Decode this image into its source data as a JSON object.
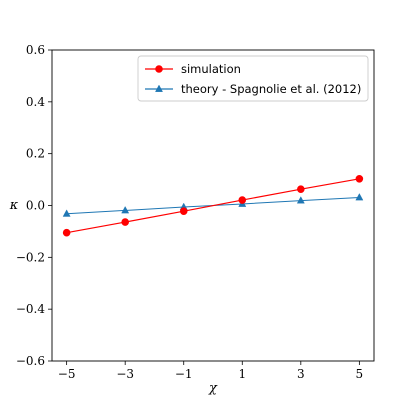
{
  "chart_data": {
    "type": "line",
    "xlabel": "χ",
    "ylabel": "κ",
    "xlim": [
      -5.5,
      5.5
    ],
    "ylim": [
      -0.6,
      0.6
    ],
    "xticks": [
      -5,
      -3,
      -1,
      1,
      3,
      5
    ],
    "xtick_labels": [
      "−5",
      "−3",
      "−1",
      "1",
      "3",
      "5"
    ],
    "yticks": [
      -0.6,
      -0.4,
      -0.2,
      0.0,
      0.2,
      0.4,
      0.6
    ],
    "ytick_labels": [
      "−0.6",
      "−0.4",
      "−0.2",
      "0.0",
      "0.2",
      "0.4",
      "0.6"
    ],
    "grid": false,
    "legend_position": "top-right",
    "series": [
      {
        "name": "simulation",
        "color": "#ff0000",
        "marker": "circle",
        "x": [
          -5,
          -3,
          -1,
          1,
          3,
          5
        ],
        "y": [
          -0.105,
          -0.064,
          -0.022,
          0.021,
          0.063,
          0.103
        ]
      },
      {
        "name": "theory - Spagnolie et al. (2012)",
        "color": "#1f77b4",
        "marker": "triangle",
        "x": [
          -5,
          -3,
          -1,
          1,
          3,
          5
        ],
        "y": [
          -0.032,
          -0.019,
          -0.006,
          0.006,
          0.019,
          0.031
        ]
      }
    ]
  }
}
